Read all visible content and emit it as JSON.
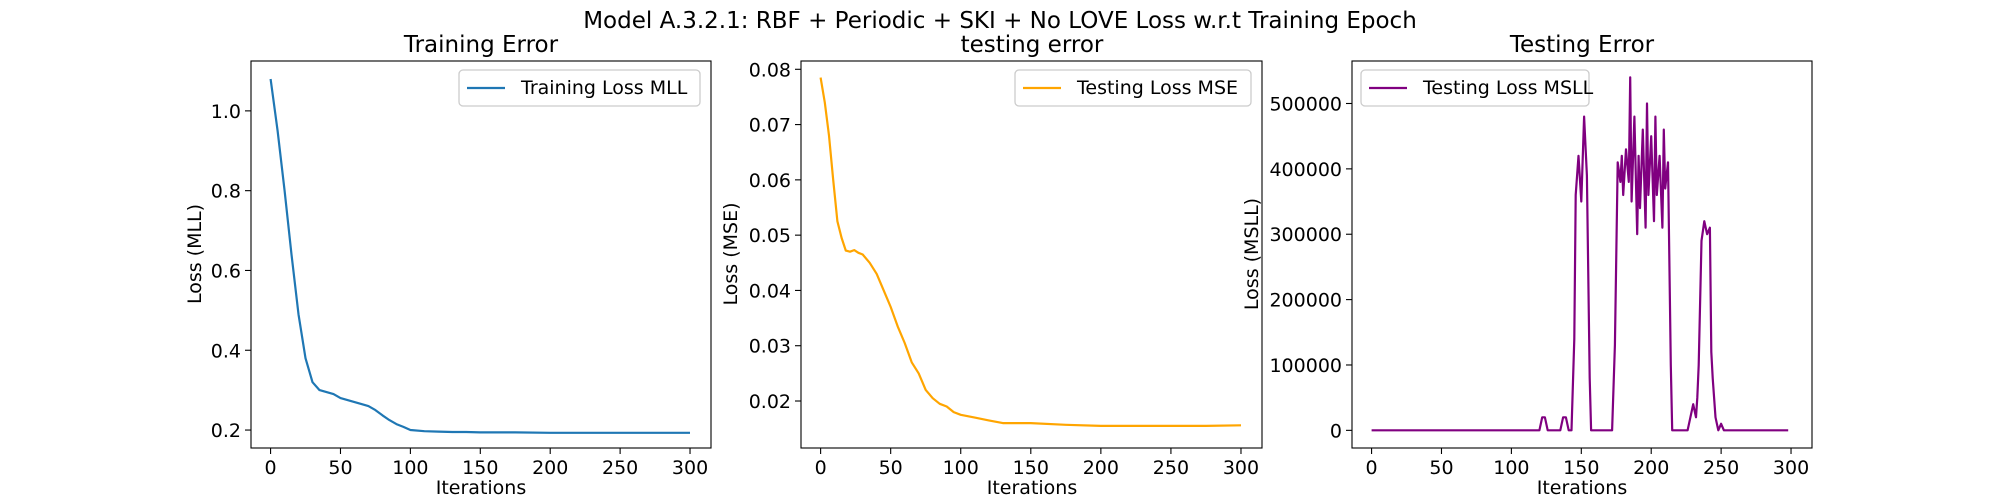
{
  "figure": {
    "suptitle": "Model A.3.2.1: RBF + Periodic + SKI + No LOVE Loss w.r.t Training Epoch"
  },
  "chart_data": [
    {
      "type": "line",
      "title": "Training Error",
      "xlabel": "Iterations",
      "ylabel": "Loss (MLL)",
      "xlim": [
        -14,
        315
      ],
      "ylim": [
        0.155,
        1.125
      ],
      "xticks": [
        0,
        50,
        100,
        150,
        200,
        250,
        300
      ],
      "yticks": [
        0.2,
        0.4,
        0.6,
        0.8,
        1.0
      ],
      "ytick_labels": [
        "0.2",
        "0.4",
        "0.6",
        "0.8",
        "1.0"
      ],
      "legend": "upper-right",
      "series": [
        {
          "name": "Training Loss MLL",
          "color": "#1f77b4",
          "x": [
            0,
            5,
            10,
            15,
            20,
            25,
            30,
            35,
            40,
            45,
            50,
            55,
            60,
            65,
            70,
            75,
            80,
            85,
            90,
            95,
            100,
            110,
            120,
            130,
            140,
            150,
            175,
            200,
            225,
            250,
            275,
            300
          ],
          "y": [
            1.08,
            0.95,
            0.8,
            0.64,
            0.49,
            0.38,
            0.32,
            0.3,
            0.295,
            0.29,
            0.28,
            0.275,
            0.27,
            0.265,
            0.26,
            0.25,
            0.237,
            0.225,
            0.215,
            0.208,
            0.2,
            0.197,
            0.196,
            0.195,
            0.195,
            0.194,
            0.194,
            0.193,
            0.193,
            0.193,
            0.193,
            0.193
          ]
        }
      ]
    },
    {
      "type": "line",
      "title": "testing error",
      "xlabel": "Iterations",
      "ylabel": "Loss (MSE)",
      "xlim": [
        -14,
        315
      ],
      "ylim": [
        0.0115,
        0.0815
      ],
      "xticks": [
        0,
        50,
        100,
        150,
        200,
        250,
        300
      ],
      "yticks": [
        0.02,
        0.03,
        0.04,
        0.05,
        0.06,
        0.07,
        0.08
      ],
      "ytick_labels": [
        "0.02",
        "0.03",
        "0.04",
        "0.05",
        "0.06",
        "0.07",
        "0.08"
      ],
      "legend": "upper-right",
      "series": [
        {
          "name": "Testing Loss MSE",
          "color": "#ffa500",
          "x": [
            0,
            3,
            6,
            9,
            12,
            15,
            18,
            21,
            24,
            27,
            30,
            35,
            40,
            45,
            50,
            55,
            60,
            65,
            70,
            75,
            80,
            85,
            90,
            95,
            100,
            110,
            120,
            130,
            140,
            150,
            175,
            200,
            225,
            250,
            275,
            300
          ],
          "y": [
            0.0785,
            0.074,
            0.068,
            0.06,
            0.0525,
            0.0495,
            0.0472,
            0.047,
            0.0473,
            0.0468,
            0.0465,
            0.045,
            0.043,
            0.04,
            0.037,
            0.0335,
            0.0305,
            0.027,
            0.025,
            0.022,
            0.0205,
            0.0195,
            0.019,
            0.018,
            0.0175,
            0.017,
            0.0165,
            0.016,
            0.016,
            0.016,
            0.0157,
            0.0155,
            0.0155,
            0.0155,
            0.0155,
            0.0156
          ]
        }
      ]
    },
    {
      "type": "line",
      "title": "Testing Error",
      "xlabel": "Iterations",
      "ylabel": "Loss (MSLL)",
      "xlim": [
        -14,
        315
      ],
      "ylim": [
        -27000,
        565000
      ],
      "xticks": [
        0,
        50,
        100,
        150,
        200,
        250,
        300
      ],
      "yticks": [
        0,
        100000,
        200000,
        300000,
        400000,
        500000
      ],
      "ytick_labels": [
        "0",
        "100000",
        "200000",
        "300000",
        "400000",
        "500000"
      ],
      "legend": "upper-left",
      "series": [
        {
          "name": "Testing Loss MSLL",
          "color": "#800080",
          "x": [
            0,
            120,
            122,
            124,
            126,
            135,
            137,
            139,
            141,
            143,
            145,
            146,
            148,
            150,
            152,
            154,
            156,
            157,
            158,
            170,
            172,
            174,
            176,
            178,
            179,
            180,
            182,
            184,
            185,
            186,
            188,
            190,
            191,
            192,
            194,
            196,
            197,
            198,
            200,
            202,
            203,
            204,
            206,
            208,
            209,
            210,
            212,
            214,
            215,
            216,
            218,
            220,
            221,
            222,
            224,
            226,
            228,
            230,
            232,
            233,
            234,
            236,
            238,
            240,
            242,
            243,
            244,
            246,
            248,
            250,
            252,
            254,
            260,
            280,
            298
          ],
          "y": [
            0,
            0,
            20000,
            20000,
            0,
            0,
            20000,
            20000,
            0,
            0,
            140000,
            360000,
            420000,
            350000,
            480000,
            390000,
            80000,
            0,
            0,
            0,
            0,
            130000,
            410000,
            380000,
            420000,
            360000,
            430000,
            380000,
            540000,
            350000,
            480000,
            300000,
            420000,
            340000,
            460000,
            310000,
            500000,
            360000,
            450000,
            320000,
            480000,
            360000,
            420000,
            310000,
            460000,
            370000,
            410000,
            100000,
            0,
            0,
            0,
            0,
            0,
            0,
            0,
            0,
            20000,
            40000,
            20000,
            50000,
            100000,
            290000,
            320000,
            300000,
            310000,
            120000,
            80000,
            20000,
            0,
            10000,
            0,
            0,
            0,
            0,
            0
          ]
        }
      ]
    }
  ]
}
